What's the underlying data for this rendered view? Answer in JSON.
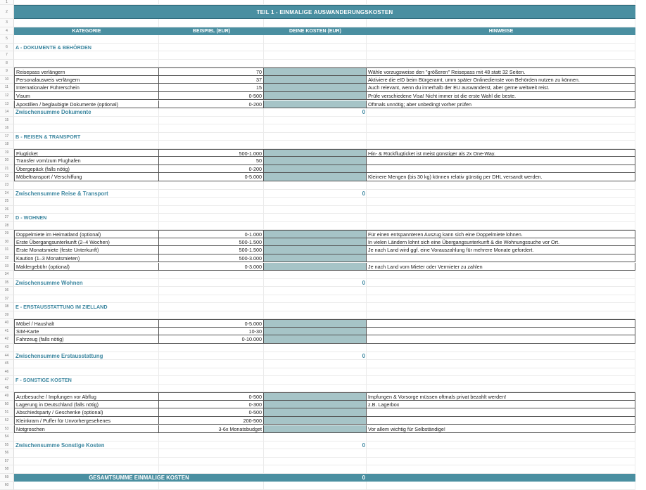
{
  "title": "TEIL 1 - EINMALIGE AUSWANDERUNGSKOSTEN",
  "headers": {
    "kategorie": "KATEGORIE",
    "beispiel": "BEISPIEL (EUR)",
    "kosten": "DEINE KOSTEN  (EUR)",
    "hinweise": "HINWEISE"
  },
  "sections": [
    {
      "heading": "A - DOKUMENTE & BEHÖRDEN",
      "items": [
        {
          "label": "Reisepass verlängern",
          "example": "70",
          "hint": "Wähle vorzugsweise den \"größeren\" Reisepass mit 48 statt 32 Seiten."
        },
        {
          "label": "Personalausweis verlängern",
          "example": "37",
          "hint": "Aktiviere die eID beim Bürgeramt, umm später Onlinedienste von Behörden nutzen zu können."
        },
        {
          "label": "Internationaler Führerschein",
          "example": "15",
          "hint": "Auch relevant, wenn du innerhalb der EU auswanderst, aber gerne weltweit reist."
        },
        {
          "label": "Visum",
          "example": "0-500",
          "hint": "Prüfe verschiedene Visa! Nicht immer ist die erste Wahl die beste."
        },
        {
          "label": "Apostillen / beglaubigte Dokumente (optional)",
          "example": "0-200",
          "hint": "Oftmals unnötig; aber unbedingt vorher prüfen"
        }
      ],
      "subtotal_label": "Zwischensumme Dokumente",
      "subtotal_value": "0"
    },
    {
      "heading": "B - REISEN & TRANSPORT",
      "items": [
        {
          "label": "Flugticket",
          "example": "500-1.000",
          "hint": "Hin- & Rückflugticket ist meist günstiger als 2x One-Way."
        },
        {
          "label": "Transfer vom/zum Flughafen",
          "example": "50",
          "hint": ""
        },
        {
          "label": "Übergepäck (falls nötig)",
          "example": "0-200",
          "hint": ""
        },
        {
          "label": "Möbeltransport / Verschiffung",
          "example": "0-5.000",
          "hint": "Kleinere Mengen (bis 30 kg) können relativ günstig per DHL versandt werden."
        }
      ],
      "subtotal_label": "Zwischensumme Reise & Transport",
      "subtotal_value": "0"
    },
    {
      "heading": "D - WOHNEN",
      "items": [
        {
          "label": "Doppelmiete im Heimatland (optional)",
          "example": "0-1.000",
          "hint": "Für einen entspannteren Auszug kann sich eine Doppelmiete lohnen."
        },
        {
          "label": "Erste Übergangsunterkunft (2–4 Wochen)",
          "example": "500-1.500",
          "hint": "In vielen Ländern lohnt sich eine Übergangsunterkunft & die Wohnungssuche vor Ort."
        },
        {
          "label": "Erste Monatsmiete (feste Unterkunft)",
          "example": "500-1.500",
          "hint": "Je nach Land wird ggf. eine Vorauszahlung für mehrere Monate gefordert."
        },
        {
          "label": "Kaution (1–3 Monatsmieten)",
          "example": "500-3.000",
          "hint": ""
        },
        {
          "label": "Maklergebühr (optional)",
          "example": "0-3.000",
          "hint": "Je nach Land vom Mieter oder Vermieter zu zahlen"
        }
      ],
      "subtotal_label": "Zwischensumme Wohnen",
      "subtotal_value": "0"
    },
    {
      "heading": "E - ERSTAUSSTATTUNG IM ZIELLAND",
      "items": [
        {
          "label": "Möbel / Haushalt",
          "example": "0-5.000",
          "hint": ""
        },
        {
          "label": "SIM-Karte",
          "example": "10-30",
          "hint": ""
        },
        {
          "label": "Fahrzeug (falls nötig)",
          "example": "0-10.000",
          "hint": ""
        }
      ],
      "subtotal_label": "Zwischensumme Erstausstattung",
      "subtotal_value": "0"
    },
    {
      "heading": "F - SONSTIGE KOSTEN",
      "items": [
        {
          "label": "Arztbesuche / Impfungen vor Abflug",
          "example": "0-500",
          "hint": "Impfungen & Vorsorge müssen oftmals privat bezahlt werden!"
        },
        {
          "label": "Lagerung in Deutschland (falls nötig)",
          "example": "0-300",
          "hint": "z.B. Lagerbox"
        },
        {
          "label": "Abschiedsparty / Geschenke (optional)",
          "example": "0-500",
          "hint": ""
        },
        {
          "label": "Kleinkram / Puffer für Unvorhergesehenes",
          "example": "200-500",
          "hint": ""
        },
        {
          "label": "Notgroschen",
          "example": "3-6x Monatsbudget",
          "hint": "Vor allem wichtig für Selbständige!"
        }
      ],
      "subtotal_label": "Zwischensumme Sonstige Kosten",
      "subtotal_value": "0"
    }
  ],
  "grand_total_label": "GESAMTSUMME EINMALIGE KOSTEN",
  "grand_total_value": "0",
  "colors": {
    "band": "#4a8fa1",
    "input_cell": "#a6c4c7",
    "accent_text": "#3d87a0"
  }
}
